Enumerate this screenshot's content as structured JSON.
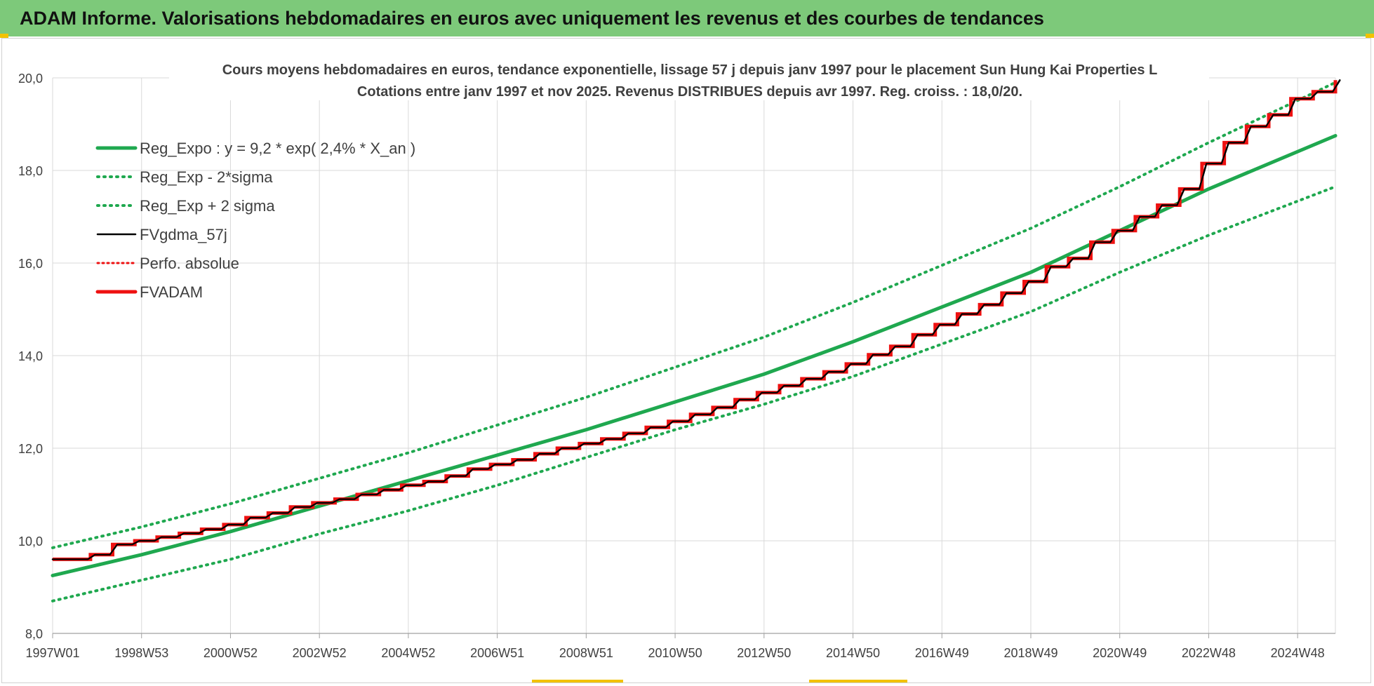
{
  "header": {
    "title": "ADAM Informe. Valorisations hebdomadaires en euros avec uniquement les revenus et des courbes de tendances"
  },
  "chart_data": {
    "type": "line",
    "title_line1": "Cours moyens hebdomadaires en euros, tendance exponentielle, lissage 57 j depuis janv 1997 pour le placement Sun Hung Kai Properties L",
    "title_line2": "Cotations entre janv 1997 et nov 2025. Revenus DISTRIBUES depuis avr 1997. Reg. croiss. : 18,0/20.",
    "ylim": [
      8.0,
      20.0
    ],
    "y_ticks": [
      "8,0",
      "10,0",
      "12,0",
      "14,0",
      "16,0",
      "18,0",
      "20,0"
    ],
    "x_range_years": [
      1997.0,
      2025.85
    ],
    "x_ticks": [
      {
        "label": "1997W01",
        "year": 1997.0
      },
      {
        "label": "1998W53",
        "year": 1999.0
      },
      {
        "label": "2000W52",
        "year": 2001.0
      },
      {
        "label": "2002W52",
        "year": 2003.0
      },
      {
        "label": "2004W52",
        "year": 2005.0
      },
      {
        "label": "2006W51",
        "year": 2007.0
      },
      {
        "label": "2008W51",
        "year": 2009.0
      },
      {
        "label": "2010W50",
        "year": 2011.0
      },
      {
        "label": "2012W50",
        "year": 2013.0
      },
      {
        "label": "2014W50",
        "year": 2015.0
      },
      {
        "label": "2016W49",
        "year": 2017.0
      },
      {
        "label": "2018W49",
        "year": 2019.0
      },
      {
        "label": "2020W49",
        "year": 2021.0
      },
      {
        "label": "2022W48",
        "year": 2023.0
      },
      {
        "label": "2024W48",
        "year": 2025.0
      }
    ],
    "legend_position": "top-left",
    "colors": {
      "green": "#1fa84f",
      "black": "#000000",
      "red": "#ee1111",
      "grid": "#d9d9d9",
      "text": "#404040"
    },
    "series": [
      {
        "name": "Reg_Expo : y = 9,2 * exp( 2,4% *  X_an )",
        "style": "solid-green",
        "x": [
          1997,
          1999,
          2001,
          2003,
          2005,
          2007,
          2009,
          2011,
          2013,
          2015,
          2017,
          2019,
          2021,
          2023,
          2025.85
        ],
        "values": [
          9.25,
          9.7,
          10.2,
          10.75,
          11.3,
          11.85,
          12.4,
          13.0,
          13.6,
          14.3,
          15.05,
          15.8,
          16.7,
          17.6,
          18.75
        ]
      },
      {
        "name": "Reg_Exp - 2*sigma",
        "style": "dotted-green",
        "x": [
          1997,
          1999,
          2001,
          2003,
          2005,
          2007,
          2009,
          2011,
          2013,
          2015,
          2017,
          2019,
          2021,
          2023,
          2025.85
        ],
        "values": [
          8.7,
          9.15,
          9.6,
          10.15,
          10.65,
          11.2,
          11.8,
          12.4,
          12.95,
          13.55,
          14.25,
          14.95,
          15.8,
          16.6,
          17.65
        ]
      },
      {
        "name": "Reg_Exp + 2 sigma",
        "style": "dotted-green",
        "x": [
          1997,
          1999,
          2001,
          2003,
          2005,
          2007,
          2009,
          2011,
          2013,
          2015,
          2017,
          2019,
          2021,
          2023,
          2025.85
        ],
        "values": [
          9.85,
          10.3,
          10.8,
          11.35,
          11.9,
          12.5,
          13.1,
          13.75,
          14.4,
          15.15,
          15.95,
          16.75,
          17.65,
          18.6,
          19.9
        ]
      },
      {
        "name": "FVgdma_57j",
        "style": "solid-black"
      },
      {
        "name": "Perfo. absolue",
        "style": "dotted-red"
      },
      {
        "name": "FVADAM",
        "style": "solid-red-step",
        "x": [
          1997.0,
          1997.85,
          1998.35,
          1998.85,
          1999.35,
          1999.85,
          2000.35,
          2000.85,
          2001.35,
          2001.85,
          2002.35,
          2002.85,
          2003.35,
          2003.85,
          2004.35,
          2004.85,
          2005.35,
          2005.85,
          2006.35,
          2006.85,
          2007.35,
          2007.85,
          2008.35,
          2008.85,
          2009.35,
          2009.85,
          2010.35,
          2010.85,
          2011.35,
          2011.85,
          2012.35,
          2012.85,
          2013.35,
          2013.85,
          2014.35,
          2014.85,
          2015.35,
          2015.85,
          2016.35,
          2016.85,
          2017.35,
          2017.85,
          2018.35,
          2018.85,
          2019.35,
          2019.85,
          2020.35,
          2020.85,
          2021.35,
          2021.85,
          2022.35,
          2022.85,
          2023.35,
          2023.85,
          2024.35,
          2024.85,
          2025.35,
          2025.85
        ],
        "values": [
          9.6,
          9.7,
          9.92,
          10.0,
          10.08,
          10.16,
          10.25,
          10.35,
          10.5,
          10.6,
          10.73,
          10.82,
          10.9,
          11.0,
          11.1,
          11.2,
          11.28,
          11.4,
          11.55,
          11.65,
          11.75,
          11.88,
          12.0,
          12.1,
          12.2,
          12.32,
          12.45,
          12.58,
          12.73,
          12.88,
          13.05,
          13.2,
          13.35,
          13.5,
          13.65,
          13.82,
          14.02,
          14.2,
          14.45,
          14.67,
          14.9,
          15.1,
          15.35,
          15.6,
          15.92,
          16.1,
          16.45,
          16.7,
          17.0,
          17.25,
          17.6,
          18.15,
          18.6,
          18.95,
          19.2,
          19.55,
          19.7,
          19.95
        ]
      }
    ]
  }
}
